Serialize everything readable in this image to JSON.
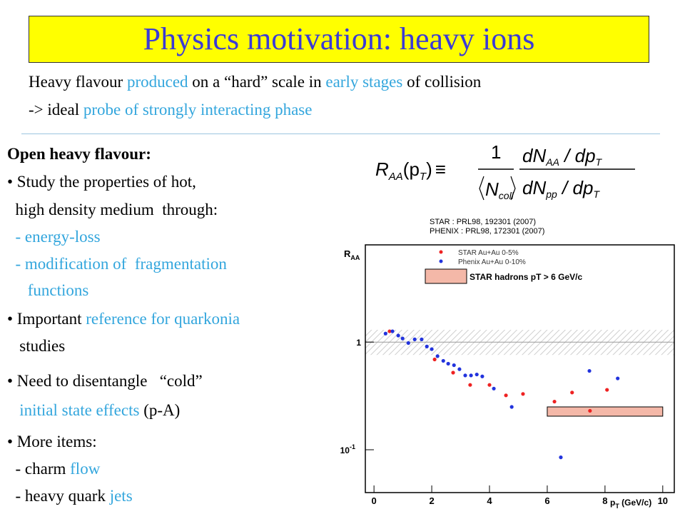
{
  "header": {
    "title": "Physics motivation: heavy ions"
  },
  "intro": [
    [
      {
        "text": "Heavy flavour "
      },
      {
        "text": "produced",
        "color": "#33a6dd"
      },
      {
        "text": " on a “hard” scale in "
      },
      {
        "text": "early stages",
        "color": "#33a6dd"
      },
      {
        "text": " of collision"
      }
    ],
    [
      {
        "text": "-> ideal "
      },
      {
        "text": "probe of strongly interacting phase",
        "color": "#33a6dd"
      }
    ]
  ],
  "body": [
    [
      {
        "text": "Open heavy flavour:",
        "bold": true
      }
    ],
    [
      {
        "text": "• Study the properties of hot,"
      }
    ],
    [
      {
        "text": "  high density medium  through:"
      }
    ],
    [
      {
        "text": "  - energy-loss",
        "color": "#33a6dd"
      }
    ],
    [
      {
        "text": "  - modification of  fragmentation",
        "color": "#33a6dd"
      }
    ],
    [
      {
        "text": "     functions",
        "color": "#33a6dd"
      }
    ],
    [
      {
        "text": "• Important "
      },
      {
        "text": "reference for quarkonia",
        "color": "#33a6dd"
      }
    ],
    [
      {
        "text": "   studies"
      }
    ],
    [
      {
        "text": "• Need to disentangle   “cold”"
      }
    ],
    [
      {
        "text": "   "
      },
      {
        "text": "initial state effects",
        "color": "#33a6dd"
      },
      {
        "text": " (p-A)"
      }
    ],
    [
      {
        "text": "• More items:"
      }
    ],
    [
      {
        "text": "  - charm "
      },
      {
        "text": "flow",
        "color": "#33a6dd"
      }
    ],
    [
      {
        "text": "  - heavy quark "
      },
      {
        "text": "jets",
        "color": "#33a6dd"
      }
    ]
  ],
  "formula": {
    "lhs": "R",
    "lhs_sub": "AA",
    "arg": "(p",
    "arg_sub": "T",
    "close": ")",
    "equiv": "≡",
    "one": "1",
    "n": "N",
    "n_sub": "coll",
    "num": "dN",
    "num_sub": "AA",
    "num_rest": " / dp",
    "num_rest_sub": "T",
    "den": "dN",
    "den_sub": "pp",
    "den_rest": " / dp",
    "den_rest_sub": "T"
  },
  "chart_data": {
    "type": "scatter",
    "references": [
      "STAR     : PRL98, 192301 (2007)",
      "PHENIX : PRL98, 172301 (2007)"
    ],
    "y_label": "R",
    "y_label_sub": "AA",
    "x_label": "p",
    "x_label_sub": "T",
    "x_label_rest": " (GeV/c)",
    "xlim": [
      -0.3,
      10.4
    ],
    "xticks": [
      0,
      2,
      4,
      6,
      8,
      10
    ],
    "ylim": [
      0.04,
      8
    ],
    "log_y": true,
    "yticks": [
      1,
      {
        "value": 0.1,
        "label": "10",
        "exponent": "-1"
      }
    ],
    "series": [
      {
        "name": "STAR Au+Au 0-5%",
        "color": "#ee2222",
        "x": [
          0.54,
          2.1,
          2.74,
          3.33,
          4.0,
          4.57,
          5.16,
          6.25,
          6.86,
          7.48,
          8.07
        ],
        "values": [
          1.26,
          0.69,
          0.52,
          0.4,
          0.4,
          0.32,
          0.33,
          0.28,
          0.34,
          0.23,
          0.36
        ]
      },
      {
        "name": "Phenix Au+Au 0-10%",
        "color": "#2233dd",
        "x": [
          0.4,
          0.64,
          0.84,
          0.99,
          1.19,
          1.41,
          1.65,
          1.83,
          2.0,
          2.2,
          2.4,
          2.57,
          2.77,
          2.96,
          3.16,
          3.36,
          3.56,
          3.75,
          4.15,
          4.77,
          6.47,
          7.46,
          8.44
        ],
        "values": [
          1.2,
          1.26,
          1.15,
          1.08,
          0.98,
          1.06,
          1.06,
          0.91,
          0.86,
          0.74,
          0.67,
          0.63,
          0.61,
          0.56,
          0.49,
          0.49,
          0.5,
          0.48,
          0.37,
          0.25,
          0.085,
          0.54,
          0.46
        ]
      }
    ],
    "band": {
      "name": "STAR hadrons pT > 6 GeV/c",
      "color": "#f4b8a8",
      "x": [
        6,
        10
      ],
      "values": [
        0.205,
        0.25
      ]
    },
    "norm_band": {
      "color": "#cfcfcf",
      "values": [
        0.76,
        1.3
      ]
    }
  }
}
